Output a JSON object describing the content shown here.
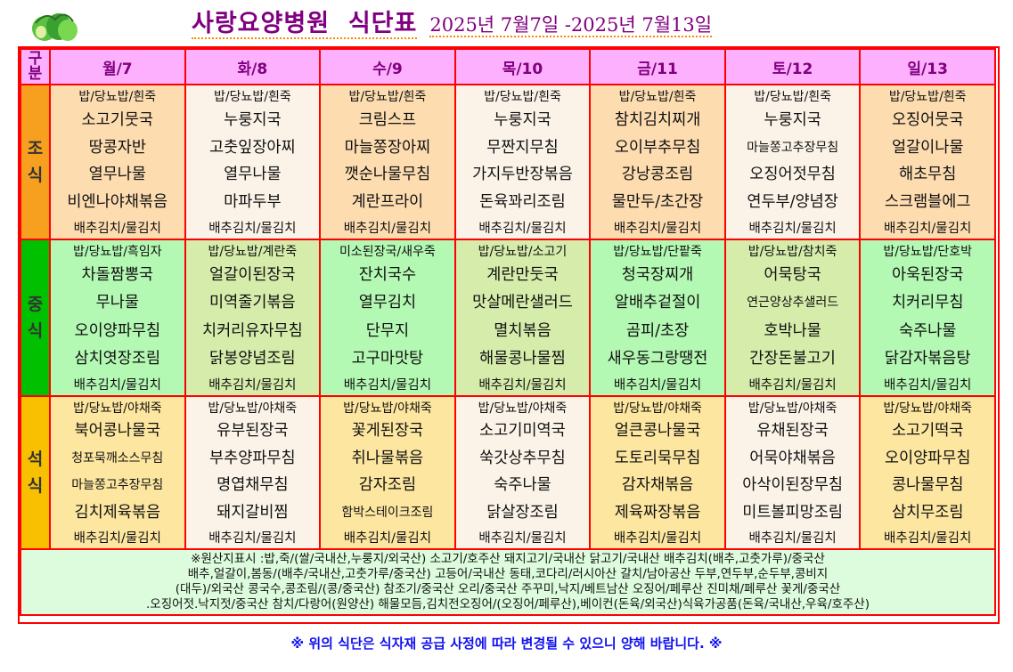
{
  "header": {
    "title": "사랑요양병원  식단표",
    "date_range": "2025년 7월7일 -2025년 7월13일"
  },
  "table": {
    "corner_label": "구분",
    "days": [
      "월/7",
      "화/8",
      "수/9",
      "목/10",
      "금/11",
      "토/12",
      "일/13"
    ],
    "meals": [
      {
        "label": "조식",
        "color": "#f7a020",
        "cells": [
          [
            "밥/당뇨밥/흰죽",
            "소고기뭇국",
            "땅콩자반",
            "열무나물",
            "비엔나야채볶음",
            "배추김치/물김치"
          ],
          [
            "밥/당뇨밥/흰죽",
            "누룽지국",
            "고춧잎장아찌",
            "열무나물",
            "마파두부",
            "배추김치/물김치"
          ],
          [
            "밥/당뇨밥/흰죽",
            "크림스프",
            "마늘쫑장아찌",
            "깻순나물무침",
            "계란프라이",
            "배추김치/물김치"
          ],
          [
            "밥/당뇨밥/흰죽",
            "누룽지국",
            "무짠지무침",
            "가지두반장볶음",
            "돈육꽈리조림",
            "배추김치/물김치"
          ],
          [
            "밥/당뇨밥/흰죽",
            "참치김치찌개",
            "오이부추무침",
            "강낭콩조림",
            "물만두/초간장",
            "배추김치/물김치"
          ],
          [
            "밥/당뇨밥/흰죽",
            "누룽지국",
            "마늘쫑고추장무침",
            "오징어젓무침",
            "연두부/양념장",
            "배추김치/물김치"
          ],
          [
            "밥/당뇨밥/흰죽",
            "오징어뭇국",
            "얼갈이나물",
            "해초무침",
            "스크램블에그",
            "배추김치/물김치"
          ]
        ]
      },
      {
        "label": "중식",
        "color": "#00c000",
        "cells": [
          [
            "밥/당뇨밥/흑임자",
            "차돌짬뽕국",
            "무나물",
            "오이양파무침",
            "삼치엿장조림",
            "배추김치/물김치"
          ],
          [
            "밥/당뇨밥/계란죽",
            "얼갈이된장국",
            "미역줄기볶음",
            "치커리유자무침",
            "닭봉양념조림",
            "배추김치/물김치"
          ],
          [
            "미소된장국/새우죽",
            "잔치국수",
            "열무김치",
            "단무지",
            "고구마맛탕",
            "배추김치/물김치"
          ],
          [
            "밥/당뇨밥/소고기",
            "계란만둣국",
            "맛살메란샐러드",
            "멸치볶음",
            "해물콩나물찜",
            "배추김치/물김치"
          ],
          [
            "밥/당뇨밥/단팥죽",
            "청국장찌개",
            "알배추겉절이",
            "곰피/초장",
            "새우동그랑땡전",
            "배추김치/물김치"
          ],
          [
            "밥/당뇨밥/참치죽",
            "어묵탕국",
            "연근양상추샐러드",
            "호박나물",
            "간장돈불고기",
            "배추김치/물김치"
          ],
          [
            "밥/당뇨밥/단호박",
            "아욱된장국",
            "치커리무침",
            "숙주나물",
            "닭감자볶음탕",
            "배추김치/물김치"
          ]
        ]
      },
      {
        "label": "석식",
        "color": "#f8c000",
        "cells": [
          [
            "밥/당뇨밥/야채죽",
            "북어콩나물국",
            "청포묵깨소스무침",
            "마늘쫑고추장무침",
            "김치제육볶음",
            "배추김치/물김치"
          ],
          [
            "밥/당뇨밥/야채죽",
            "유부된장국",
            "부추양파무침",
            "명엽채무침",
            "돼지갈비찜",
            "배추김치/물김치"
          ],
          [
            "밥/당뇨밥/야채죽",
            "꽃게된장국",
            "취나물볶음",
            "감자조림",
            "함박스테이크조림",
            "배추김치/물김치"
          ],
          [
            "밥/당뇨밥/야채죽",
            "소고기미역국",
            "쑥갓상추무침",
            "숙주나물",
            "닭살장조림",
            "배추김치/물김치"
          ],
          [
            "밥/당뇨밥/야채죽",
            "얼큰콩나물국",
            "도토리묵무침",
            "감자채볶음",
            "제육짜장볶음",
            "배추김치/물김치"
          ],
          [
            "밥/당뇨밥/야채죽",
            "유채된장국",
            "어묵야채볶음",
            "아삭이된장무침",
            "미트볼피망조림",
            "배추김치/물김치"
          ],
          [
            "밥/당뇨밥/야채죽",
            "소고기떡국",
            "오이양파무침",
            "콩나물무침",
            "삼치무조림",
            "배추김치/물김치"
          ]
        ]
      }
    ],
    "notes": [
      "※원산지표시 :밥,죽/(쌀/국내산,누룽지/외국산) 소고기/호주산  돼지고기/국내산 닭고기/국내산 배추김치(배추,고춧가루)/중국산",
      "배추,얼갈이,봄동/(배추/국내산,고춧가루/중국산) 고등어/국내산  동태,코다리/러시아산  갈치/남아공산  두부,연두부,순두부,콩비지",
      "(대두)/외국산 콩국수,콩조림/(콩/중국산)  참조기/중국산  오리/중국산 주꾸미,낙지/베트남산 오징어/페루산 진미채/페루산  꽃게/중국산",
      ".오징어젓.낙지젓/중국산 참치/다랑어(원양산)  해물모듬,김치전오징어/(오징어/페루산),베이컨(돈육/외국산)식육가공품(돈육/국내산,우육/호주산)"
    ]
  },
  "footer": "※ 위의 식단은 식자재 공급 사정에 따라 변경될 수 있으니 양해 바랍니다. ※",
  "colors": {
    "header_bg": "#fdb0fd",
    "header_text": "#800080",
    "border": "#ff0000",
    "footer_text": "#1010f0"
  }
}
